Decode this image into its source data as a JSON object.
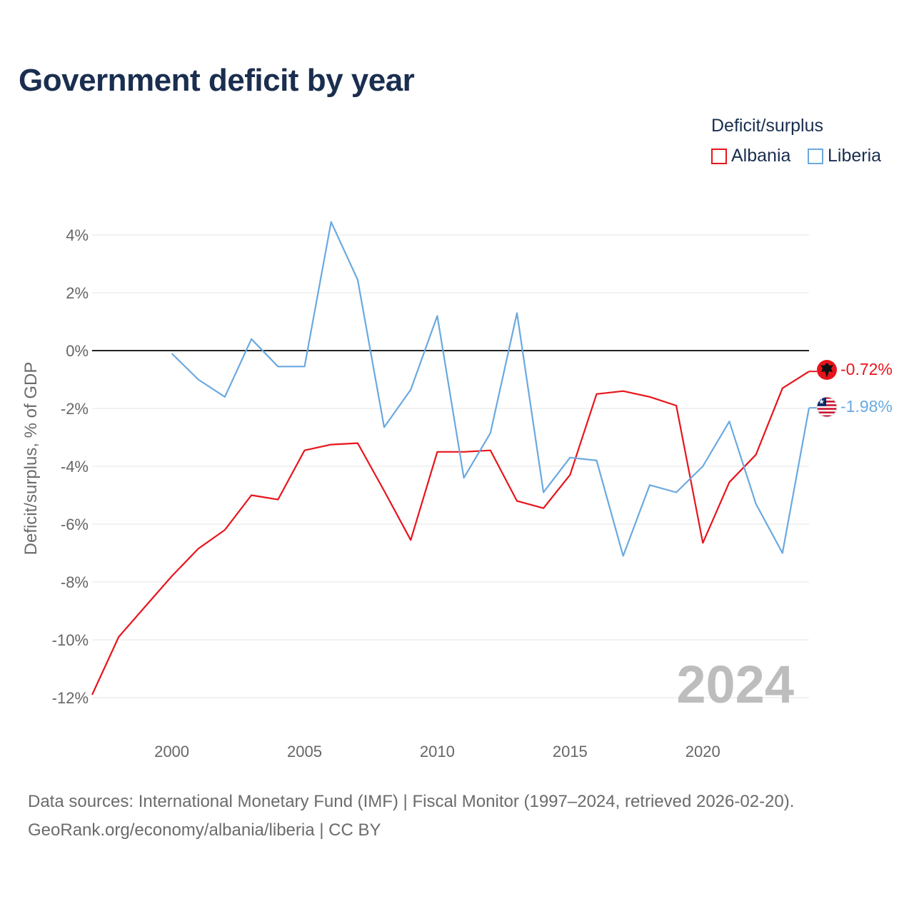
{
  "title": "Government deficit by year",
  "legend": {
    "title": "Deficit/surplus",
    "items": [
      {
        "label": "Albania",
        "color": "#e8141b"
      },
      {
        "label": "Liberia",
        "color": "#6aa9e0"
      }
    ]
  },
  "footer": {
    "line1": "Data sources: International Monetary Fund (IMF) | Fiscal Monitor (1997–2024, retrieved 2026-02-20).",
    "line2": "GeoRank.org/economy/albania/liberia | CC BY"
  },
  "chart_data": {
    "type": "line",
    "title": "Government deficit by year",
    "ylabel": "Deficit/surplus, % of GDP",
    "xlabel": "",
    "year_watermark": "2024",
    "xlim": [
      1997,
      2024
    ],
    "ylim": [
      -12,
      4
    ],
    "x_ticks": [
      2000,
      2005,
      2010,
      2015,
      2020
    ],
    "y_ticks": [
      {
        "value": 4,
        "label": "4%"
      },
      {
        "value": 2,
        "label": "2%"
      },
      {
        "value": 0,
        "label": "0%"
      },
      {
        "value": -2,
        "label": "-2%"
      },
      {
        "value": -4,
        "label": "-4%"
      },
      {
        "value": -6,
        "label": "-6%"
      },
      {
        "value": -8,
        "label": "-8%"
      },
      {
        "value": -10,
        "label": "-10%"
      },
      {
        "value": -12,
        "label": "-12%"
      }
    ],
    "series": [
      {
        "name": "Albania",
        "color": "#e8141b",
        "end_label": "-0.72%",
        "x": [
          1997,
          1998,
          1999,
          2000,
          2001,
          2002,
          2003,
          2004,
          2005,
          2006,
          2007,
          2008,
          2009,
          2010,
          2011,
          2012,
          2013,
          2014,
          2015,
          2016,
          2017,
          2018,
          2019,
          2020,
          2021,
          2022,
          2023,
          2024
        ],
        "values": [
          -11.9,
          -9.9,
          -8.85,
          -7.8,
          -6.85,
          -6.2,
          -5.0,
          -5.15,
          -3.45,
          -3.25,
          -3.2,
          -4.85,
          -6.55,
          -3.5,
          -3.5,
          -3.45,
          -5.2,
          -5.45,
          -4.3,
          -1.5,
          -1.4,
          -1.6,
          -1.9,
          -6.65,
          -4.55,
          -3.6,
          -1.3,
          -0.72
        ]
      },
      {
        "name": "Liberia",
        "color": "#6aa9e0",
        "end_label": "-1.98%",
        "x": [
          2000,
          2001,
          2002,
          2003,
          2004,
          2005,
          2006,
          2007,
          2008,
          2009,
          2010,
          2011,
          2012,
          2013,
          2014,
          2015,
          2016,
          2017,
          2018,
          2019,
          2020,
          2021,
          2022,
          2023,
          2024
        ],
        "values": [
          -0.1,
          -1.0,
          -1.6,
          0.4,
          -0.55,
          -0.55,
          4.45,
          2.45,
          -2.65,
          -1.35,
          1.2,
          -4.4,
          -2.85,
          1.3,
          -4.9,
          -3.7,
          -3.8,
          -7.1,
          -4.65,
          -4.9,
          -4.0,
          -2.45,
          -5.3,
          -7.0,
          -1.98
        ]
      }
    ]
  }
}
